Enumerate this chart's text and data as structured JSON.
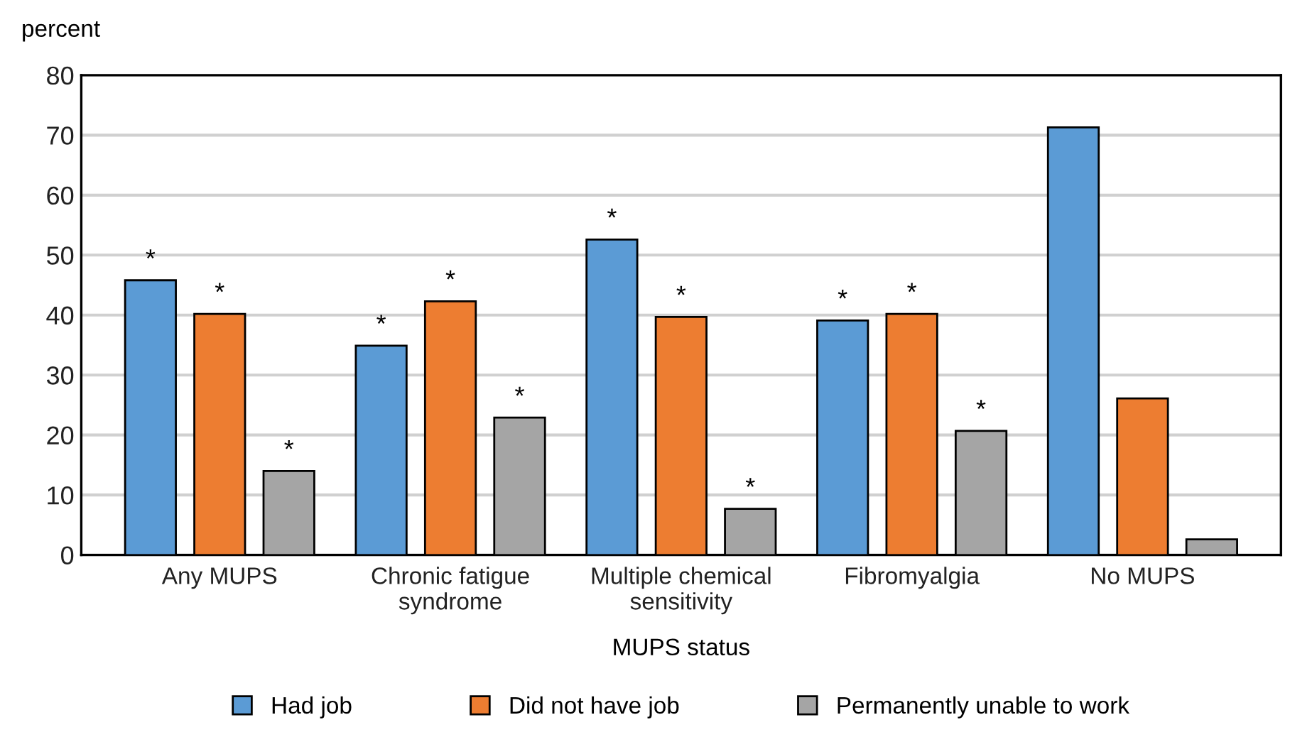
{
  "chart_data": {
    "type": "bar",
    "ylabel": "percent",
    "xlabel": "MUPS status",
    "categories": [
      "Any MUPS",
      "Chronic fatigue\nsyndrome",
      "Multiple chemical\nsensitivity",
      "Fibromyalgia",
      "No MUPS"
    ],
    "series": [
      {
        "name": "Had job",
        "color": "#5b9bd5",
        "values": [
          45.8,
          34.9,
          52.6,
          39.1,
          71.3
        ],
        "value_labels": [
          "*",
          "*",
          "*",
          "*",
          null
        ]
      },
      {
        "name": "Did not have job",
        "color": "#ed7d31",
        "values": [
          40.2,
          42.3,
          39.7,
          40.2,
          26.1
        ],
        "value_labels": [
          "*",
          "*",
          "*",
          "*",
          null
        ]
      },
      {
        "name": "Permanently unable to work",
        "color": "#a5a5a5",
        "values": [
          14.0,
          22.9,
          7.7,
          20.7,
          2.6
        ],
        "value_labels": [
          "*",
          "*",
          "*",
          "*",
          null
        ]
      }
    ],
    "ylim": [
      0,
      80
    ],
    "yticks": [
      0,
      10,
      20,
      30,
      40,
      50,
      60,
      70,
      80
    ],
    "grid": "y",
    "legend": "bottom"
  }
}
